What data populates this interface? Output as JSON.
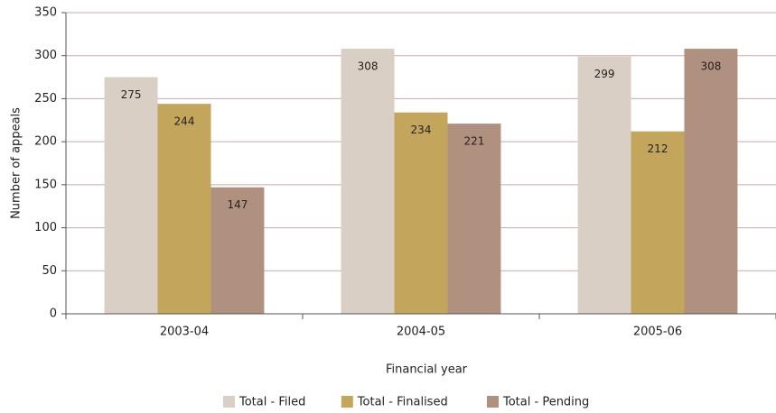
{
  "chart_data": {
    "type": "bar",
    "x_label": "Financial year",
    "y_label": "Number of appeals",
    "categories": [
      "2003-04",
      "2004-05",
      "2005-06"
    ],
    "series": [
      {
        "name": "Total - Filed",
        "color": "#d9cfc4",
        "values": [
          275,
          308,
          299
        ]
      },
      {
        "name": "Total - Finalised",
        "color": "#c4a55c",
        "values": [
          244,
          234,
          212
        ]
      },
      {
        "name": "Total - Pending",
        "color": "#b0907f",
        "values": [
          147,
          221,
          308
        ]
      }
    ],
    "ylim": [
      0,
      350
    ],
    "yticks": [
      0,
      50,
      100,
      150,
      200,
      250,
      300,
      350
    ],
    "grid": true,
    "legend": "bottom"
  }
}
